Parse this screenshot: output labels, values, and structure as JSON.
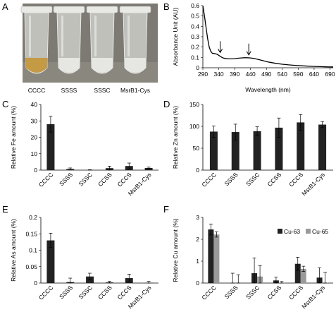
{
  "panels": [
    {
      "id": "A",
      "letter": "A"
    },
    {
      "id": "B",
      "letter": "B"
    },
    {
      "id": "C",
      "letter": "C"
    },
    {
      "id": "D",
      "letter": "D"
    },
    {
      "id": "E",
      "letter": "E"
    },
    {
      "id": "F",
      "letter": "F"
    }
  ],
  "photo": {
    "tube_labels": [
      "CCCC",
      "SSSS",
      "SSSC",
      "MsrB1-Cys"
    ],
    "colors": {
      "background": "#7c7a72",
      "tube": "#d7d8d4",
      "liquid_colored": "#c59a45",
      "liquid_clear": "#e6e6e2"
    }
  },
  "chart_data": [
    {
      "panel": "B",
      "type": "line",
      "ylabel": "Absorbance Unit (AU)",
      "xlabel": "Wavelength (nm)",
      "x_ticks": [
        290,
        340,
        390,
        440,
        490,
        540,
        590,
        640,
        690
      ],
      "y_ticks": [
        0,
        0.1,
        0.2,
        0.3,
        0.4,
        0.5,
        0.6
      ],
      "xlim": [
        290,
        700
      ],
      "ylim": [
        0,
        0.6
      ],
      "series": [
        {
          "x": [
            290,
            295,
            300,
            305,
            310,
            315,
            320,
            325,
            330,
            335,
            340,
            345,
            350,
            355,
            360,
            370,
            380,
            390,
            400,
            410,
            420,
            430,
            440,
            450,
            460,
            470,
            480,
            490,
            500,
            520,
            540,
            560,
            580,
            600,
            620,
            640,
            660,
            680,
            700
          ],
          "y": [
            0.6,
            0.5,
            0.39,
            0.28,
            0.2,
            0.158,
            0.14,
            0.138,
            0.135,
            0.13,
            0.12,
            0.11,
            0.1,
            0.094,
            0.09,
            0.086,
            0.086,
            0.088,
            0.092,
            0.095,
            0.097,
            0.097,
            0.095,
            0.09,
            0.083,
            0.076,
            0.068,
            0.06,
            0.053,
            0.042,
            0.034,
            0.028,
            0.023,
            0.019,
            0.016,
            0.013,
            0.011,
            0.009,
            0.008
          ]
        }
      ],
      "arrows_at_x": [
        340,
        430
      ],
      "colors": {
        "line": "#000000"
      }
    },
    {
      "panel": "C",
      "type": "bar",
      "ylabel": "Relative Fe amount (%)",
      "categories": [
        "CCCC",
        "SSSS",
        "SSSC",
        "CCSS",
        "CCCS",
        "MsrB1-Cys"
      ],
      "values": [
        28,
        0.7,
        0.1,
        1.2,
        2.5,
        1.3
      ],
      "errors": [
        4.8,
        0.6,
        0.15,
        1.2,
        1.8,
        0.5
      ],
      "y_ticks": [
        0,
        10,
        20,
        30,
        40
      ],
      "ylim": [
        0,
        40
      ],
      "colors": {
        "bar": "#222222"
      }
    },
    {
      "panel": "D",
      "type": "bar",
      "ylabel": "Relative Zn amount (%)",
      "categories": [
        "CCCC",
        "SSSS",
        "SSSC",
        "CCSS",
        "CCCS",
        "MsrB1-Cys"
      ],
      "values": [
        88,
        87,
        89,
        97,
        109,
        104
      ],
      "errors": [
        13,
        18,
        10,
        22,
        18,
        7
      ],
      "y_ticks": [
        0,
        50,
        100,
        150
      ],
      "ylim": [
        0,
        150
      ],
      "colors": {
        "bar": "#222222"
      }
    },
    {
      "panel": "E",
      "type": "bar",
      "ylabel": "Relative As amount (%)",
      "categories": [
        "CCCC",
        "SSSS",
        "SSSC",
        "CCSS",
        "CCCS",
        "MsrB1-Cys"
      ],
      "values": [
        0.13,
        0.003,
        0.02,
        0.002,
        0.015,
        0.001
      ],
      "errors": [
        0.022,
        0.012,
        0.01,
        0.003,
        0.012,
        0.004
      ],
      "y_ticks": [
        0,
        0.05,
        0.1,
        0.15,
        0.2
      ],
      "ylim": [
        0,
        0.2
      ],
      "colors": {
        "bar": "#222222"
      }
    },
    {
      "panel": "F",
      "type": "bar",
      "ylabel": "Relative Cu amount (%)",
      "categories": [
        "CCCC",
        "SSSS",
        "SSSC",
        "CCSS",
        "CCCS",
        "MsrB1-Cys"
      ],
      "series": [
        {
          "name": "Cu-63",
          "values": [
            2.45,
            0.0,
            0.45,
            0.12,
            0.88,
            0.25
          ],
          "errors": [
            0.25,
            0.45,
            0.7,
            0.15,
            0.3,
            0.45
          ]
        },
        {
          "name": "Cu-65",
          "values": [
            2.22,
            0.0,
            0.3,
            0.02,
            0.65,
            0.02
          ],
          "errors": [
            0.12,
            0.38,
            0.5,
            0.05,
            0.12,
            0.47
          ]
        }
      ],
      "y_ticks": [
        0,
        1,
        2,
        3
      ],
      "ylim": [
        0,
        3
      ],
      "legend": "top-right",
      "colors": {
        "Cu-63": "#222222",
        "Cu-65": "#9a9a9a"
      }
    }
  ]
}
